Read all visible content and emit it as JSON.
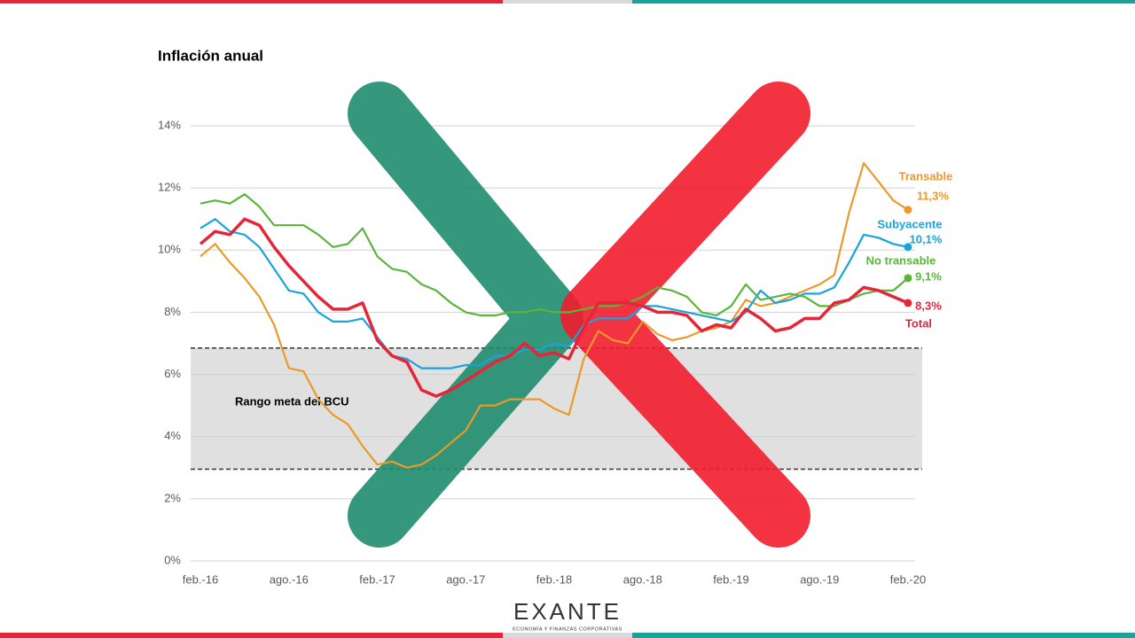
{
  "chart_data": {
    "type": "line",
    "title": "Inflación anual",
    "categories": [
      "feb.-16",
      null,
      null,
      null,
      null,
      null,
      "ago.-16",
      null,
      null,
      null,
      null,
      null,
      "feb.-17",
      null,
      null,
      null,
      null,
      null,
      "ago.-17",
      null,
      null,
      null,
      null,
      null,
      "feb.-18",
      null,
      null,
      null,
      null,
      null,
      "ago.-18",
      null,
      null,
      null,
      null,
      null,
      "feb.-19",
      null,
      null,
      null,
      null,
      null,
      "ago.-19",
      null,
      null,
      null,
      null,
      null,
      "feb.-20"
    ],
    "ylim": [
      0,
      14
    ],
    "yticks": [
      {
        "value": 0,
        "label": "0%"
      },
      {
        "value": 2,
        "label": "2%"
      },
      {
        "value": 4,
        "label": "4%"
      },
      {
        "value": 6,
        "label": "6%"
      },
      {
        "value": 8,
        "label": "8%"
      },
      {
        "value": 10,
        "label": "10%"
      },
      {
        "value": 12,
        "label": "12%"
      },
      {
        "value": 14,
        "label": "14%"
      }
    ],
    "grid": true,
    "target_range": {
      "label": "Rango meta del BCU",
      "values": [
        2.95,
        6.85
      ]
    },
    "series": [
      {
        "name": "Transable",
        "color": "#eb9a2a",
        "values": [
          9.8,
          10.2,
          9.6,
          9.1,
          8.5,
          7.6,
          6.2,
          6.1,
          5.2,
          4.7,
          4.4,
          3.7,
          3.1,
          3.2,
          3.0,
          3.1,
          3.4,
          3.8,
          4.2,
          5.0,
          5.0,
          5.2,
          5.2,
          5.2,
          4.9,
          4.7,
          6.5,
          7.4,
          7.1,
          7.0,
          7.7,
          7.3,
          7.1,
          7.2,
          7.4,
          7.5,
          7.7,
          8.4,
          8.2,
          8.3,
          8.5,
          8.7,
          8.9,
          9.2,
          11.2,
          12.8,
          12.2,
          11.6,
          11.3
        ],
        "value_labels": [
          null,
          null,
          null,
          null,
          null,
          null,
          null,
          null,
          null,
          null,
          null,
          null,
          null,
          null,
          null,
          null,
          null,
          null,
          null,
          null,
          null,
          null,
          null,
          null,
          null,
          null,
          null,
          null,
          null,
          null,
          null,
          null,
          null,
          null,
          null,
          null,
          null,
          null,
          null,
          null,
          null,
          null,
          null,
          null,
          null,
          null,
          null,
          null,
          "11,3%"
        ]
      },
      {
        "name": "Subyacente",
        "color": "#1ba3dc",
        "values": [
          10.7,
          11.0,
          10.6,
          10.5,
          10.1,
          9.4,
          8.7,
          8.6,
          8.0,
          7.7,
          7.7,
          7.8,
          7.2,
          6.6,
          6.5,
          6.2,
          6.2,
          6.2,
          6.3,
          6.3,
          6.6,
          6.6,
          6.8,
          6.8,
          7.0,
          6.9,
          7.6,
          7.8,
          7.8,
          7.8,
          8.2,
          8.2,
          8.1,
          8.0,
          7.9,
          7.8,
          7.7,
          8.0,
          8.7,
          8.3,
          8.4,
          8.6,
          8.6,
          8.8,
          9.6,
          10.5,
          10.4,
          10.2,
          10.1
        ],
        "value_labels": [
          null,
          null,
          null,
          null,
          null,
          null,
          null,
          null,
          null,
          null,
          null,
          null,
          null,
          null,
          null,
          null,
          null,
          null,
          null,
          null,
          null,
          null,
          null,
          null,
          null,
          null,
          null,
          null,
          null,
          null,
          null,
          null,
          null,
          null,
          null,
          null,
          null,
          null,
          null,
          null,
          null,
          null,
          null,
          null,
          null,
          null,
          null,
          null,
          "10,1%"
        ]
      },
      {
        "name": "No transable",
        "color": "#5cb53b",
        "values": [
          11.5,
          11.6,
          11.5,
          11.8,
          11.4,
          10.8,
          10.8,
          10.8,
          10.5,
          10.1,
          10.2,
          10.7,
          9.8,
          9.4,
          9.3,
          8.9,
          8.7,
          8.3,
          8.0,
          7.9,
          7.9,
          8.0,
          8.0,
          8.1,
          8.0,
          8.0,
          8.1,
          8.2,
          8.2,
          8.3,
          8.5,
          8.8,
          8.7,
          8.5,
          8.0,
          7.9,
          8.2,
          8.9,
          8.4,
          8.5,
          8.6,
          8.5,
          8.2,
          8.2,
          8.4,
          8.6,
          8.7,
          8.7,
          9.1
        ],
        "value_labels": [
          null,
          null,
          null,
          null,
          null,
          null,
          null,
          null,
          null,
          null,
          null,
          null,
          null,
          null,
          null,
          null,
          null,
          null,
          null,
          null,
          null,
          null,
          null,
          null,
          null,
          null,
          null,
          null,
          null,
          null,
          null,
          null,
          null,
          null,
          null,
          null,
          null,
          null,
          null,
          null,
          null,
          null,
          null,
          null,
          null,
          null,
          null,
          null,
          "9,1%"
        ]
      },
      {
        "name": "Total",
        "color": "#e5263a",
        "values": [
          10.2,
          10.6,
          10.5,
          11.0,
          10.8,
          10.1,
          9.5,
          9.0,
          8.5,
          8.1,
          8.1,
          8.3,
          7.1,
          6.6,
          6.4,
          5.5,
          5.3,
          5.5,
          5.8,
          6.1,
          6.4,
          6.6,
          7.0,
          6.6,
          6.7,
          6.5,
          7.5,
          8.3,
          8.3,
          8.3,
          8.2,
          8.0,
          8.0,
          7.9,
          7.4,
          7.6,
          7.5,
          8.1,
          7.8,
          7.4,
          7.5,
          7.8,
          7.8,
          8.3,
          8.4,
          8.8,
          8.7,
          8.5,
          8.3
        ],
        "value_labels": [
          null,
          null,
          null,
          null,
          null,
          null,
          null,
          null,
          null,
          null,
          null,
          null,
          null,
          null,
          null,
          null,
          null,
          null,
          null,
          null,
          null,
          null,
          null,
          null,
          null,
          null,
          null,
          null,
          null,
          null,
          null,
          null,
          null,
          null,
          null,
          null,
          null,
          null,
          null,
          null,
          null,
          null,
          null,
          null,
          null,
          null,
          null,
          null,
          "8,3%"
        ]
      }
    ]
  },
  "logo": {
    "name": "EXANTE",
    "tagline": "ECONOMÍA Y FINANZAS CORPORATIVAS"
  }
}
